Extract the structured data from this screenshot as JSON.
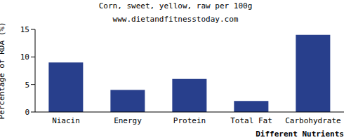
{
  "chart_data": {
    "type": "bar",
    "title": "Corn, sweet, yellow, raw per 100g",
    "subtitle": "www.dietandfitnesstoday.com",
    "x_label": "Different Nutrients",
    "y_label": "Percentage of RDA (%)",
    "categories": [
      "Niacin",
      "Energy",
      "Protein",
      "Total Fat",
      "Carbohydrate"
    ],
    "values": [
      9,
      4,
      6,
      2,
      14
    ],
    "color": "#283f8c",
    "ylim": [
      0,
      15
    ],
    "yticks": [
      0,
      5,
      10,
      15
    ],
    "grid": false
  }
}
